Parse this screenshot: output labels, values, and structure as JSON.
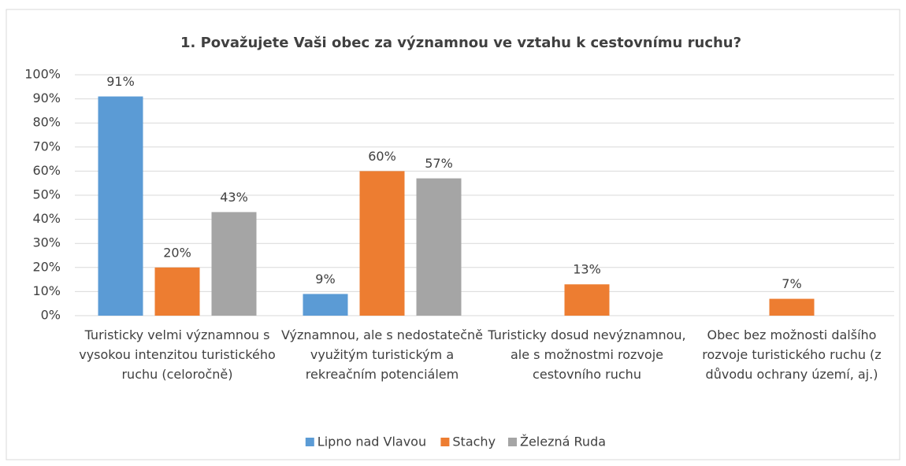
{
  "chart_data": {
    "type": "bar",
    "title": "1. Považujete Vaši obec za významnou ve vztahu k cestovnímu ruchu?",
    "categories": [
      "Turisticky velmi významnou s vysokou intenzitou turistického ruchu (celoročně)",
      "Významnou, ale s nedostatečně využitým turistickým a rekreačním potenciálem",
      "Turisticky dosud nevýznamnou, ale s možnostmi rozvoje cestovního ruchu",
      "Obec bez možnosti dalšího rozvoje turistického ruchu (z důvodu ochrany území, aj.)"
    ],
    "series": [
      {
        "name": "Lipno nad Vlavou",
        "color": "#5b9bd5",
        "values": [
          91,
          9,
          null,
          null
        ],
        "value_labels": [
          "91%",
          "9%",
          null,
          null
        ]
      },
      {
        "name": "Stachy",
        "color": "#ed7d31",
        "values": [
          20,
          60,
          13,
          7
        ],
        "value_labels": [
          "20%",
          "60%",
          "13%",
          "7%"
        ]
      },
      {
        "name": "Železná Ruda",
        "color": "#a5a5a5",
        "values": [
          43,
          57,
          null,
          null
        ],
        "value_labels": [
          "43%",
          "57%",
          null,
          null
        ]
      }
    ],
    "ylim": [
      0,
      100
    ],
    "yticks": [
      {
        "value": 0,
        "label": "0%"
      },
      {
        "value": 10,
        "label": "10%"
      },
      {
        "value": 20,
        "label": "20%"
      },
      {
        "value": 30,
        "label": "30%"
      },
      {
        "value": 40,
        "label": "40%"
      },
      {
        "value": 50,
        "label": "50%"
      },
      {
        "value": 60,
        "label": "60%"
      },
      {
        "value": 70,
        "label": "70%"
      },
      {
        "value": 80,
        "label": "80%"
      },
      {
        "value": 90,
        "label": "90%"
      },
      {
        "value": 100,
        "label": "100%"
      }
    ],
    "grid": true,
    "legend": "bottom"
  }
}
